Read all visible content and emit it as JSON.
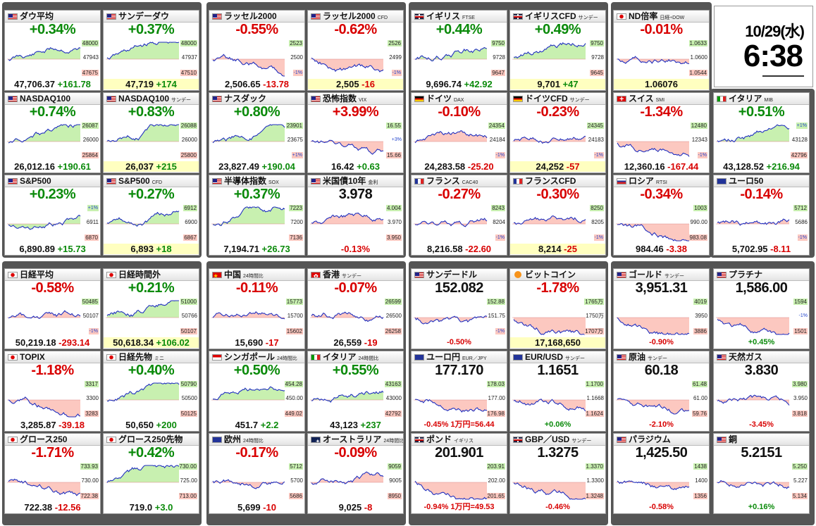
{
  "clock": {
    "date": "10/29(水)",
    "time": "6:38"
  },
  "colors": {
    "up": "#0a8a0a",
    "down": "#d80000",
    "chart_line": "#2030c0",
    "fill_up": "#c8f0b0",
    "fill_down": "#fcc8c0"
  },
  "cards": [
    {
      "id": "dow",
      "flag": "us",
      "name": "ダウ平均",
      "sub": "",
      "pct": "+0.34%",
      "dir": "up",
      "price": "47,706.37",
      "chg": "+161.78",
      "axis": [
        "48000",
        "47943",
        "47675"
      ],
      "trend": "up"
    },
    {
      "id": "sundow",
      "flag": "us",
      "name": "サンデーダウ",
      "sub": "",
      "pct": "+0.37%",
      "dir": "up",
      "price": "47,719",
      "chg": "+174",
      "axis": [
        "48000",
        "47937",
        "47510"
      ],
      "trend": "up",
      "yel": true
    },
    {
      "id": "russell",
      "flag": "us",
      "name": "ラッセル2000",
      "sub": "",
      "pct": "-0.55%",
      "dir": "dn",
      "price": "2,506.65",
      "chg": "-13.78",
      "axis": [
        "2523",
        "2500",
        "-1%"
      ],
      "trend": "dn"
    },
    {
      "id": "russellcfd",
      "flag": "us",
      "name": "ラッセル2000",
      "sub": "CFD",
      "pct": "-0.62%",
      "dir": "dn",
      "price": "2,505",
      "chg": "-16",
      "axis": [
        "2526",
        "2499",
        "-1%"
      ],
      "trend": "dn",
      "yel": true
    },
    {
      "id": "ftse",
      "flag": "uk",
      "name": "イギリス",
      "sub": "FTSE",
      "pct": "+0.44%",
      "dir": "up",
      "price": "9,696.74",
      "chg": "+42.92",
      "axis": [
        "9750",
        "9728",
        "9647"
      ],
      "trend": "up"
    },
    {
      "id": "ftsecfd",
      "flag": "uk",
      "name": "イギリスCFD",
      "sub": "サンデー",
      "pct": "+0.49%",
      "dir": "up",
      "price": "9,701",
      "chg": "+47",
      "axis": [
        "9750",
        "9728",
        "9645"
      ],
      "trend": "up",
      "yel": true
    },
    {
      "id": "ndratio",
      "flag": "jp",
      "name": "ND倍率",
      "sub": "日経÷DOW",
      "pct": "-0.01%",
      "dir": "dn",
      "price": "1.06076",
      "chg": "",
      "axis": [
        "1.0633",
        "1.0600",
        "1.0544"
      ],
      "trend": "flat",
      "yel": true
    },
    {
      "id": "nasdaq100",
      "flag": "us",
      "name": "NASDAQ100",
      "sub": "",
      "pct": "+0.74%",
      "dir": "up",
      "price": "26,012.16",
      "chg": "+190.61",
      "axis": [
        "26087",
        "26000",
        "25864"
      ],
      "trend": "up"
    },
    {
      "id": "nasdaq100s",
      "flag": "us",
      "name": "NASDAQ100",
      "sub": "サンデー",
      "pct": "+0.83%",
      "dir": "up",
      "price": "26,037",
      "chg": "+215",
      "axis": [
        "26088",
        "26000",
        "25800"
      ],
      "trend": "up",
      "yel": true
    },
    {
      "id": "nasdaq",
      "flag": "us",
      "name": "ナスダック",
      "sub": "",
      "pct": "+0.80%",
      "dir": "up",
      "price": "23,827.49",
      "chg": "+190.04",
      "axis": [
        "23901",
        "23675",
        "+1%"
      ],
      "trend": "up"
    },
    {
      "id": "vix",
      "flag": "us",
      "name": "恐怖指数",
      "sub": "VIX",
      "pct": "+3.99%",
      "dir": "dn",
      "price": "16.42",
      "chg": "+0.63",
      "axis": [
        "16.55",
        "+3%",
        "15.66"
      ],
      "trend": "dn"
    },
    {
      "id": "dax",
      "flag": "de",
      "name": "ドイツ",
      "sub": "DAX",
      "pct": "-0.10%",
      "dir": "dn",
      "price": "24,283.58",
      "chg": "-25.20",
      "axis": [
        "24354",
        "24184",
        "-1%"
      ],
      "trend": "flat"
    },
    {
      "id": "daxcfd",
      "flag": "de",
      "name": "ドイツCFD",
      "sub": "サンデー",
      "pct": "-0.23%",
      "dir": "dn",
      "price": "24,252",
      "chg": "-57",
      "axis": [
        "24345",
        "24183",
        "-1%"
      ],
      "trend": "flat",
      "yel": true
    },
    {
      "id": "smi",
      "flag": "ch",
      "name": "スイス",
      "sub": "SMI",
      "pct": "-1.34%",
      "dir": "dn",
      "price": "12,360.16",
      "chg": "-167.44",
      "axis": [
        "12480",
        "12343",
        "-1%"
      ],
      "trend": "dn"
    },
    {
      "id": "mib",
      "flag": "it",
      "name": "イタリア",
      "sub": "MIB",
      "pct": "+0.51%",
      "dir": "up",
      "price": "43,128.52",
      "chg": "+216.94",
      "axis": [
        "+1%",
        "43128",
        "42796"
      ],
      "trend": "up"
    },
    {
      "id": "sp500",
      "flag": "us",
      "name": "S&P500",
      "sub": "",
      "pct": "+0.23%",
      "dir": "up",
      "price": "6,890.89",
      "chg": "+15.73",
      "axis": [
        "+1%",
        "6911",
        "6870"
      ],
      "trend": "up"
    },
    {
      "id": "sp500cfd",
      "flag": "us",
      "name": "S&P500",
      "sub": "CFD",
      "pct": "+0.27%",
      "dir": "up",
      "price": "6,893",
      "chg": "+18",
      "axis": [
        "6912",
        "6900",
        "6867"
      ],
      "trend": "up",
      "yel": true
    },
    {
      "id": "sox",
      "flag": "us",
      "name": "半導体指数",
      "sub": "SOX",
      "pct": "+0.37%",
      "dir": "up",
      "price": "7,194.71",
      "chg": "+26.73",
      "axis": [
        "7223",
        "7200",
        "7136"
      ],
      "trend": "up"
    },
    {
      "id": "us10y",
      "flag": "us",
      "name": "米国債10年",
      "sub": "金利",
      "pct": "3.978",
      "dir": "bk",
      "price": "",
      "chg": "-0.13%",
      "axis": [
        "4.004",
        "3.970",
        "3.950"
      ],
      "trend": "flat"
    },
    {
      "id": "cac",
      "flag": "fr",
      "name": "フランス",
      "sub": "CAC40",
      "pct": "-0.27%",
      "dir": "dn",
      "price": "8,216.58",
      "chg": "-22.60",
      "axis": [
        "8243",
        "8204",
        "-1%"
      ],
      "trend": "flat"
    },
    {
      "id": "caccfd",
      "flag": "fr",
      "name": "フランスCFD",
      "sub": "",
      "pct": "-0.30%",
      "dir": "dn",
      "price": "8,214",
      "chg": "-25",
      "axis": [
        "8250",
        "8205",
        "-1%"
      ],
      "trend": "flat",
      "yel": true
    },
    {
      "id": "rtsi",
      "flag": "ru",
      "name": "ロシア",
      "sub": "RTSI",
      "pct": "-0.34%",
      "dir": "dn",
      "price": "984.46",
      "chg": "-3.38",
      "axis": [
        "1003",
        "990.00",
        "983.08"
      ],
      "trend": "dn"
    },
    {
      "id": "euro50",
      "flag": "eu",
      "name": "ユーロ50",
      "sub": "",
      "pct": "-0.14%",
      "dir": "dn",
      "price": "5,702.95",
      "chg": "-8.11",
      "axis": [
        "5712",
        "5686",
        "-1%"
      ],
      "trend": "flat"
    },
    {
      "id": "nikkei",
      "flag": "jp",
      "name": "日経平均",
      "sub": "",
      "pct": "-0.58%",
      "dir": "dn",
      "price": "50,219.18",
      "chg": "-293.14",
      "axis": [
        "50485",
        "50107",
        "-1%"
      ],
      "trend": "dn"
    },
    {
      "id": "nikkeiah",
      "flag": "jp",
      "name": "日経時間外",
      "sub": "",
      "pct": "+0.21%",
      "dir": "up",
      "price": "50,618.34",
      "chg": "+106.02",
      "axis": [
        "51000",
        "50766",
        "50107"
      ],
      "trend": "up",
      "yel": true
    },
    {
      "id": "china",
      "flag": "cn",
      "name": "中国",
      "sub": "24時間比",
      "pct": "-0.11%",
      "dir": "dn",
      "price": "15,690",
      "chg": "-17",
      "axis": [
        "15773",
        "15700",
        "15602"
      ],
      "trend": "flat"
    },
    {
      "id": "hk",
      "flag": "hk",
      "name": "香港",
      "sub": "サンデー",
      "pct": "-0.07%",
      "dir": "dn",
      "price": "26,559",
      "chg": "-19",
      "axis": [
        "26599",
        "26500",
        "26258"
      ],
      "trend": "flat"
    },
    {
      "id": "sunusd",
      "flag": "us",
      "name": "サンデードル",
      "sub": "",
      "pct": "152.082",
      "dir": "bk",
      "price": "",
      "chg": "-0.50%",
      "axis": [
        "152.88",
        "151.75",
        "-1%"
      ],
      "trend": "dn",
      "fx": true
    },
    {
      "id": "btc",
      "flag": "btc",
      "name": "ビットコイン",
      "sub": "",
      "pct": "-1.78%",
      "dir": "dn",
      "price": "17,168,650",
      "chg": "",
      "axis": [
        "1765万",
        "1750万",
        "1707万"
      ],
      "trend": "dn",
      "yel": true
    },
    {
      "id": "gold",
      "flag": "us",
      "name": "ゴールド",
      "sub": "サンデー",
      "pct": "3,951.31",
      "dir": "bk",
      "price": "",
      "chg": "-0.90%",
      "axis": [
        "4019",
        "3950",
        "3886"
      ],
      "trend": "dn",
      "fx": true
    },
    {
      "id": "platinum",
      "flag": "us",
      "name": "プラチナ",
      "sub": "",
      "pct": "1,586.00",
      "dir": "bk",
      "price": "",
      "chg": "+0.45%",
      "axis": [
        "1594",
        "-1%",
        "1501"
      ],
      "trend": "dn",
      "fx": true
    },
    {
      "id": "topix",
      "flag": "jp",
      "name": "TOPIX",
      "sub": "",
      "pct": "-1.18%",
      "dir": "dn",
      "price": "3,285.87",
      "chg": "-39.18",
      "axis": [
        "3317",
        "3300",
        "3283"
      ],
      "trend": "dn"
    },
    {
      "id": "nikkeifut",
      "flag": "jp",
      "name": "日経先物",
      "sub": "ミニ",
      "pct": "+0.40%",
      "dir": "up",
      "price": "50,650",
      "chg": "+200",
      "axis": [
        "50790",
        "50500",
        "50125"
      ],
      "trend": "up"
    },
    {
      "id": "sgx",
      "flag": "sg",
      "name": "シンガポール",
      "sub": "24時間比",
      "pct": "+0.50%",
      "dir": "up",
      "price": "451.7",
      "chg": "+2.2",
      "axis": [
        "454.28",
        "450.00",
        "449.02"
      ],
      "trend": "up"
    },
    {
      "id": "itaiy24",
      "flag": "it",
      "name": "イタリア",
      "sub": "24時間比",
      "pct": "+0.55%",
      "dir": "up",
      "price": "43,123",
      "chg": "+237",
      "axis": [
        "43163",
        "43000",
        "42792"
      ],
      "trend": "up"
    },
    {
      "id": "eurjpy",
      "flag": "eu",
      "name": "ユーロ円",
      "sub": "EUR／JPY",
      "pct": "177.170",
      "dir": "bk",
      "price": "",
      "chg": "-0.45% 1万円=56.44",
      "axis": [
        "178.03",
        "177.00",
        "176.98"
      ],
      "trend": "dn",
      "fx": true
    },
    {
      "id": "eurusd",
      "flag": "eu",
      "name": "EUR/USD",
      "sub": "サンデー",
      "pct": "1.1651",
      "dir": "bk",
      "price": "",
      "chg": "+0.06%",
      "axis": [
        "1.1700",
        "1.1668",
        "1.1624"
      ],
      "trend": "flat",
      "fx": true
    },
    {
      "id": "oil",
      "flag": "us",
      "name": "原油",
      "sub": "サンデー",
      "pct": "60.18",
      "dir": "bk",
      "price": "",
      "chg": "-2.10%",
      "axis": [
        "61.48",
        "61.00",
        "59.76"
      ],
      "trend": "dn",
      "fx": true
    },
    {
      "id": "natgas",
      "flag": "us",
      "name": "天然ガス",
      "sub": "",
      "pct": "3.830",
      "dir": "bk",
      "price": "",
      "chg": "-3.45%",
      "axis": [
        "3.980",
        "3.950",
        "3.818"
      ],
      "trend": "dn",
      "fx": true
    },
    {
      "id": "growth250",
      "flag": "jp",
      "name": "グロース250",
      "sub": "",
      "pct": "-1.71%",
      "dir": "dn",
      "price": "722.38",
      "chg": "-12.56",
      "axis": [
        "733.93",
        "730.00",
        "722.38"
      ],
      "trend": "dn"
    },
    {
      "id": "growth250f",
      "flag": "jp",
      "name": "グロース250先物",
      "sub": "",
      "pct": "+0.42%",
      "dir": "up",
      "price": "719.0",
      "chg": "+3.0",
      "axis": [
        "730.00",
        "725.00",
        "713.00"
      ],
      "trend": "up"
    },
    {
      "id": "eu24",
      "flag": "eu",
      "name": "欧州",
      "sub": "24時間比",
      "pct": "-0.17%",
      "dir": "dn",
      "price": "5,699",
      "chg": "-10",
      "axis": [
        "5712",
        "5700",
        "5686"
      ],
      "trend": "flat"
    },
    {
      "id": "aus",
      "flag": "au",
      "name": "オーストラリア",
      "sub": "24時間比",
      "pct": "-0.09%",
      "dir": "dn",
      "price": "9,025",
      "chg": "-8",
      "axis": [
        "9059",
        "9005",
        "8950"
      ],
      "trend": "flat"
    },
    {
      "id": "gbpjpy",
      "flag": "uk",
      "name": "ポンド",
      "sub": "イギリス",
      "pct": "201.901",
      "dir": "bk",
      "price": "",
      "chg": "-0.94% 1万円=49.53",
      "axis": [
        "203.91",
        "202.00",
        "201.65"
      ],
      "trend": "dn",
      "fx": true
    },
    {
      "id": "gbpusd",
      "flag": "uk",
      "name": "GBP／USD",
      "sub": "サンデー",
      "pct": "1.3275",
      "dir": "bk",
      "price": "",
      "chg": "-0.46%",
      "axis": [
        "1.3370",
        "1.3300",
        "1.3248"
      ],
      "trend": "dn",
      "fx": true
    },
    {
      "id": "palladium",
      "flag": "us",
      "name": "パラジウム",
      "sub": "",
      "pct": "1,425.50",
      "dir": "bk",
      "price": "",
      "chg": "-0.58%",
      "axis": [
        "1438",
        "1400",
        "1356"
      ],
      "trend": "dn",
      "fx": true
    },
    {
      "id": "copper",
      "flag": "us",
      "name": "銅",
      "sub": "",
      "pct": "5.2151",
      "dir": "bk",
      "price": "",
      "chg": "+0.16%",
      "axis": [
        "5.250",
        "5.227",
        "5.134"
      ],
      "trend": "flat",
      "fx": true
    }
  ]
}
